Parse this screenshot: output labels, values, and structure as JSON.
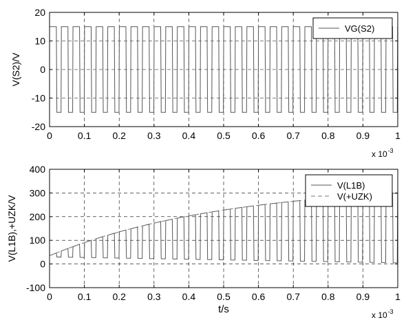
{
  "chart_data": [
    {
      "type": "line",
      "ylabel": "V(S2)/V",
      "xlabel": "",
      "x_exponent": "x 10",
      "x_exponent_power": "-3",
      "xlim": [
        0,
        1
      ],
      "ylim": [
        -20,
        20
      ],
      "x_ticks": [
        0,
        0.1,
        0.2,
        0.3,
        0.4,
        0.5,
        0.6,
        0.7,
        0.8,
        0.9,
        1
      ],
      "y_ticks": [
        -20,
        -10,
        0,
        10,
        20
      ],
      "grid": true,
      "legend_position": "top-right",
      "series": [
        {
          "name": "VG(S2)",
          "style": "solid",
          "color": "#555555",
          "period": 0.0333,
          "first_high_end": 0.021,
          "high_value": 15,
          "low_value": -15,
          "low_duration": 0.012
        }
      ]
    },
    {
      "type": "line",
      "ylabel": "V(L1B),+UZK/V",
      "xlabel": "t/s",
      "x_exponent": "x 10",
      "x_exponent_power": "-3",
      "xlim": [
        0,
        1
      ],
      "ylim": [
        -100,
        400
      ],
      "x_ticks": [
        0,
        0.1,
        0.2,
        0.3,
        0.4,
        0.5,
        0.6,
        0.7,
        0.8,
        0.9,
        1
      ],
      "y_ticks": [
        -100,
        0,
        100,
        200,
        300,
        400
      ],
      "grid": true,
      "legend_position": "top-right",
      "series": [
        {
          "name": "V(L1B)",
          "style": "solid",
          "color": "#555555",
          "period": 0.0333,
          "first_high_end": 0.021,
          "low_value": 30,
          "low_value_end": 5,
          "high_start": 35,
          "high_growth_tau": 0.5,
          "high_max": 340
        },
        {
          "name": "V(+UZK)",
          "style": "dashed",
          "color": "#777777",
          "envelope_start": 35,
          "envelope_max": 340,
          "envelope_tau": 0.5
        }
      ]
    }
  ]
}
